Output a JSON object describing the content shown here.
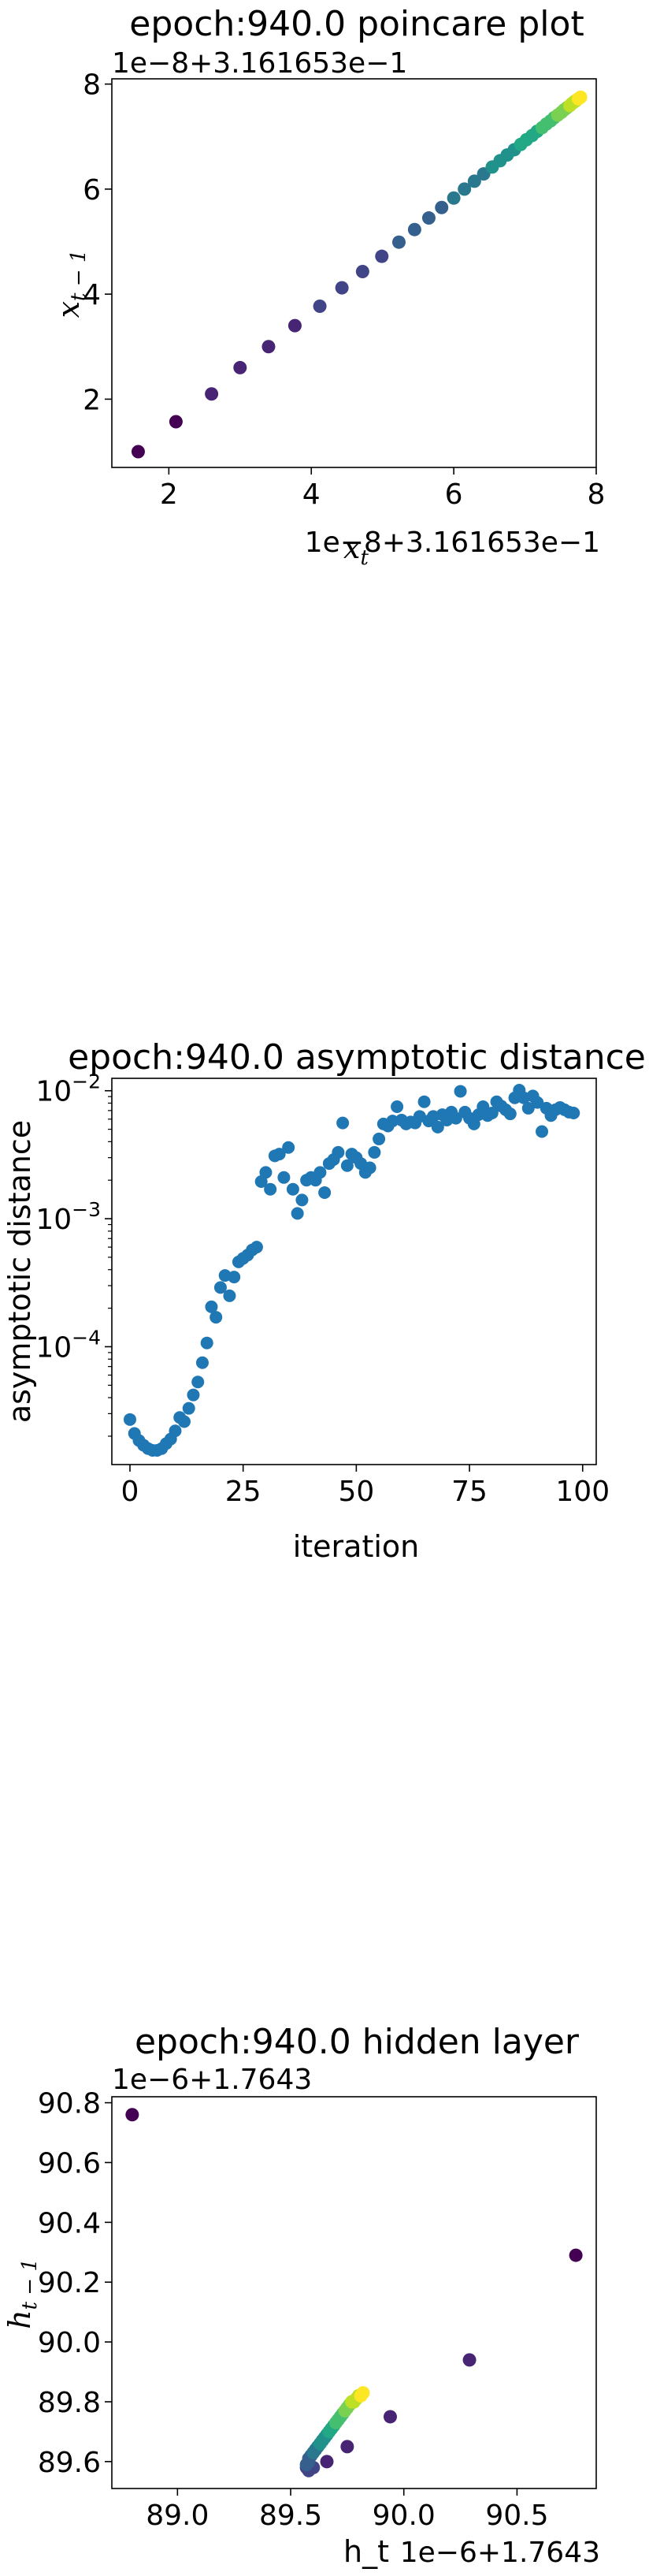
{
  "chart_data": [
    {
      "type": "scatter",
      "title": "epoch:940.0 poincare plot",
      "xlabel": "x_t",
      "ylabel": "x_{t-1}",
      "offset_x": "1e−8+3.161653e−1",
      "offset_y": "1e−8+3.161653e−1",
      "xlim": [
        1.2,
        8.0
      ],
      "ylim": [
        0.7,
        8.1
      ],
      "xticks": [
        2,
        4,
        6,
        8
      ],
      "yticks": [
        2,
        4,
        6,
        8
      ],
      "colormap": "viridis",
      "colors": [
        "#440154",
        "#482475",
        "#414487",
        "#355f8d",
        "#2a788e",
        "#21918c",
        "#22a884",
        "#44bf70",
        "#7ad151",
        "#bddf26",
        "#fde725"
      ],
      "x": [
        1.57,
        2.1,
        2.6,
        3.0,
        3.4,
        3.77,
        4.12,
        4.43,
        4.72,
        4.99,
        5.23,
        5.45,
        5.65,
        5.83,
        6.0,
        6.15,
        6.29,
        6.42,
        6.54,
        6.65,
        6.75,
        6.85,
        6.94,
        7.02,
        7.1,
        7.17,
        7.24,
        7.3,
        7.36,
        7.41,
        7.46,
        7.51,
        7.55,
        7.59,
        7.63,
        7.66,
        7.69,
        7.72,
        7.75,
        7.78
      ],
      "y": [
        1.0,
        1.57,
        2.1,
        2.6,
        3.0,
        3.4,
        3.77,
        4.12,
        4.43,
        4.72,
        4.99,
        5.23,
        5.45,
        5.65,
        5.83,
        6.0,
        6.15,
        6.29,
        6.42,
        6.54,
        6.65,
        6.75,
        6.85,
        6.94,
        7.02,
        7.1,
        7.17,
        7.24,
        7.3,
        7.36,
        7.41,
        7.46,
        7.51,
        7.55,
        7.59,
        7.63,
        7.66,
        7.69,
        7.72,
        7.75
      ]
    },
    {
      "type": "scatter",
      "title": "epoch:940.0 asymptotic distance",
      "xlabel": "iteration",
      "ylabel": "asymptotic distance",
      "yscale": "log",
      "xlim": [
        -4,
        103
      ],
      "ylim": [
        1.2e-05,
        0.0125
      ],
      "xticks": [
        0,
        25,
        50,
        75,
        100
      ],
      "yticks": [
        0.0001,
        0.001,
        0.01
      ],
      "ytick_labels": [
        {
          "base": "10",
          "exp": "−4"
        },
        {
          "base": "10",
          "exp": "−3"
        },
        {
          "base": "10",
          "exp": "−2"
        }
      ],
      "marker_color": "#1f77b4",
      "x": [
        0,
        1,
        2,
        3,
        4,
        5,
        6,
        7,
        8,
        9,
        10,
        11,
        12,
        13,
        14,
        15,
        16,
        17,
        18,
        19,
        20,
        21,
        22,
        23,
        24,
        25,
        26,
        27,
        28,
        29,
        30,
        31,
        32,
        33,
        34,
        35,
        36,
        37,
        38,
        39,
        40,
        41,
        42,
        43,
        44,
        45,
        46,
        47,
        48,
        49,
        50,
        51,
        52,
        53,
        54,
        55,
        56,
        57,
        58,
        59,
        60,
        61,
        62,
        63,
        64,
        65,
        66,
        67,
        68,
        69,
        70,
        71,
        72,
        73,
        74,
        75,
        76,
        77,
        78,
        79,
        80,
        81,
        82,
        83,
        84,
        85,
        86,
        87,
        88,
        89,
        90,
        91,
        92,
        93,
        94,
        95,
        96,
        97,
        98
      ],
      "y": [
        2.7e-05,
        2.1e-05,
        1.85e-05,
        1.7e-05,
        1.6e-05,
        1.55e-05,
        1.55e-05,
        1.6e-05,
        1.75e-05,
        1.9e-05,
        2.2e-05,
        2.8e-05,
        2.6e-05,
        3.3e-05,
        4.2e-05,
        5.3e-05,
        7.5e-05,
        0.000107,
        0.000205,
        0.00017,
        0.00029,
        0.00036,
        0.00025,
        0.00035,
        0.00046,
        0.00049,
        0.00052,
        0.00057,
        0.0006,
        0.00195,
        0.0023,
        0.0017,
        0.0031,
        0.0032,
        0.0021,
        0.0036,
        0.0017,
        0.0011,
        0.0014,
        0.002,
        0.0021,
        0.002,
        0.0023,
        0.0016,
        0.0027,
        0.0029,
        0.0033,
        0.0056,
        0.0026,
        0.0032,
        0.003,
        0.0027,
        0.0023,
        0.0025,
        0.0033,
        0.0042,
        0.0055,
        0.0053,
        0.0058,
        0.0075,
        0.0059,
        0.0055,
        0.0057,
        0.0056,
        0.0063,
        0.0082,
        0.0058,
        0.0063,
        0.0052,
        0.0065,
        0.0059,
        0.0068,
        0.0061,
        0.0099,
        0.0068,
        0.0061,
        0.0055,
        0.0065,
        0.0075,
        0.0064,
        0.0067,
        0.0082,
        0.0076,
        0.0071,
        0.0066,
        0.0088,
        0.0101,
        0.0088,
        0.0073,
        0.0091,
        0.0081,
        0.0048,
        0.0073,
        0.0064,
        0.0071,
        0.0074,
        0.0071,
        0.0068,
        0.0067
      ]
    },
    {
      "type": "scatter",
      "title": "epoch:940.0 hidden layer",
      "xlabel": "h_t",
      "ylabel": "h_{t-1}",
      "offset_x": "1e−6+1.7643",
      "offset_y": "1e−6+1.7643",
      "xlim": [
        88.71,
        90.85
      ],
      "ylim": [
        89.51,
        90.82
      ],
      "xticks": [
        89.0,
        89.5,
        90.0,
        90.5
      ],
      "xtick_labels": [
        "89.0",
        "89.5",
        "90.0",
        "90.5"
      ],
      "yticks": [
        89.6,
        89.8,
        90.0,
        90.2,
        90.4,
        90.6,
        90.8
      ],
      "ytick_labels": [
        "89.6",
        "89.8",
        "90.0",
        "90.2",
        "90.4",
        "90.6",
        "90.8"
      ],
      "colormap": "viridis",
      "colors": [
        "#440154",
        "#482475",
        "#414487",
        "#355f8d",
        "#2a788e",
        "#21918c",
        "#22a884",
        "#44bf70",
        "#7ad151",
        "#bddf26",
        "#fde725"
      ],
      "x": [
        88.8,
        90.76,
        90.29,
        89.94,
        89.75,
        89.66,
        89.6,
        89.58,
        89.57,
        89.57,
        89.58,
        89.58,
        89.59,
        89.6,
        89.61,
        89.62,
        89.63,
        89.64,
        89.65,
        89.66,
        89.67,
        89.68,
        89.69,
        89.7,
        89.71,
        89.72,
        89.73,
        89.74,
        89.75,
        89.76,
        89.77,
        89.78,
        89.79,
        89.8,
        89.81,
        89.82
      ],
      "y": [
        90.76,
        90.29,
        89.94,
        89.75,
        89.65,
        89.6,
        89.58,
        89.57,
        89.58,
        89.59,
        89.6,
        89.61,
        89.62,
        89.63,
        89.64,
        89.65,
        89.66,
        89.67,
        89.68,
        89.69,
        89.7,
        89.71,
        89.72,
        89.73,
        89.74,
        89.75,
        89.76,
        89.77,
        89.78,
        89.79,
        89.8,
        89.8,
        89.81,
        89.82,
        89.82,
        89.83
      ]
    }
  ]
}
